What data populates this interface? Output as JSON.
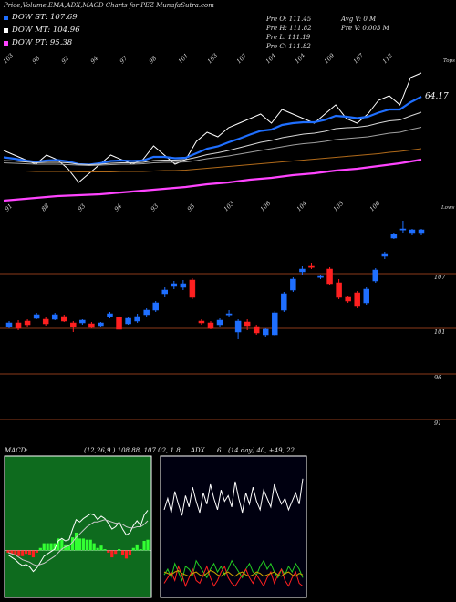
{
  "header": {
    "title": "Price,Volume,EMA,ADX,MACD Charts for PEZ MunafaSutra.com",
    "dow": [
      {
        "label": "DOW ST: 107.69",
        "color": "#1f6fff"
      },
      {
        "label": "DOW MT: 104.96",
        "color": "#ffffff"
      },
      {
        "label": "DOW PT: 95.38",
        "color": "#ff44ff"
      }
    ],
    "ohlc_left": [
      "Pre  O: 111.45",
      "Pre  H: 111.82",
      "Pre  L: 111.19",
      "Pre  C: 111.82"
    ],
    "ohlc_right": [
      "Avg V: 0  M",
      "Pre  V: 0.003 M"
    ]
  },
  "chart_data": [
    {
      "type": "line",
      "name": "ema-panel",
      "right_label": "64.17",
      "corner_label": "Tops",
      "top_labels": [
        "103",
        "98",
        "92",
        "94",
        "97",
        "98",
        "101",
        "103",
        "107",
        "104",
        "104",
        "109",
        "107",
        "112"
      ],
      "bottom_labels": [
        "91",
        "88",
        "93",
        "94",
        "93",
        "95",
        "103",
        "106",
        "104",
        "105",
        "106"
      ],
      "corner_label_bottom": "Lows",
      "x": [
        0,
        1,
        2,
        3,
        4,
        5,
        6,
        7,
        8,
        9,
        10,
        11,
        12,
        13,
        14,
        15,
        16,
        17,
        18,
        19,
        20,
        21,
        22,
        23,
        24,
        25,
        26,
        27,
        28,
        29,
        30,
        31,
        32,
        33,
        34,
        35,
        36,
        37,
        38,
        39
      ],
      "series": [
        {
          "color": "#ffffff",
          "values": [
            102,
            101,
            100,
            99,
            101,
            100,
            98,
            95,
            97,
            99,
            101,
            100,
            99,
            100,
            103,
            101,
            99,
            100,
            104,
            106,
            105,
            107,
            108,
            109,
            110,
            108,
            111,
            110,
            109,
            108,
            110,
            112,
            109,
            108,
            110,
            113,
            114,
            112,
            118,
            119
          ]
        },
        {
          "color": "#1f6fff",
          "values": [
            100.5,
            100.2,
            99.8,
            99.5,
            99.8,
            99.9,
            99.6,
            99.0,
            98.9,
            99.2,
            99.7,
            99.8,
            99.7,
            99.8,
            100.6,
            100.6,
            100.3,
            100.4,
            101.4,
            102.4,
            102.9,
            103.8,
            104.6,
            105.5,
            106.3,
            106.6,
            107.6,
            108.0,
            108.2,
            108.2,
            108.7,
            109.6,
            109.4,
            109.1,
            109.4,
            110.3,
            111.0,
            111.0,
            112.6,
            113.8
          ]
        },
        {
          "color": "#d8d8d8",
          "values": [
            99.8,
            99.7,
            99.5,
            99.3,
            99.4,
            99.4,
            99.3,
            99.0,
            98.9,
            99.0,
            99.2,
            99.3,
            99.3,
            99.4,
            99.8,
            99.9,
            99.9,
            100.0,
            100.5,
            101.1,
            101.5,
            102.0,
            102.6,
            103.2,
            103.8,
            104.2,
            104.8,
            105.2,
            105.6,
            105.8,
            106.2,
            106.8,
            107.0,
            107.1,
            107.4,
            108.0,
            108.5,
            108.7,
            109.6,
            110.4
          ]
        },
        {
          "color": "#a0a0a0",
          "values": [
            99.3,
            99.2,
            99.1,
            99.0,
            99.0,
            99.0,
            98.9,
            98.8,
            98.7,
            98.8,
            98.9,
            99.0,
            99.0,
            99.1,
            99.3,
            99.4,
            99.4,
            99.5,
            99.8,
            100.2,
            100.5,
            100.8,
            101.2,
            101.6,
            102.0,
            102.4,
            102.8,
            103.2,
            103.5,
            103.7,
            104.0,
            104.4,
            104.6,
            104.8,
            105.0,
            105.4,
            105.8,
            106.0,
            106.6,
            107.1
          ]
        },
        {
          "color": "#b06a1a",
          "values": [
            97.5,
            97.5,
            97.5,
            97.4,
            97.4,
            97.4,
            97.4,
            97.3,
            97.3,
            97.3,
            97.3,
            97.4,
            97.4,
            97.4,
            97.5,
            97.6,
            97.6,
            97.7,
            97.9,
            98.1,
            98.3,
            98.5,
            98.7,
            98.9,
            99.1,
            99.3,
            99.5,
            99.7,
            99.9,
            100.1,
            100.3,
            100.5,
            100.7,
            100.9,
            101.1,
            101.3,
            101.6,
            101.8,
            102.1,
            102.4
          ]
        },
        {
          "color": "#ff44ff",
          "values": [
            91.0,
            91.2,
            91.4,
            91.6,
            91.8,
            92.0,
            92.1,
            92.2,
            92.3,
            92.4,
            92.6,
            92.8,
            93.0,
            93.2,
            93.4,
            93.6,
            93.8,
            94.0,
            94.3,
            94.6,
            94.8,
            95.0,
            95.3,
            95.6,
            95.8,
            96.0,
            96.3,
            96.6,
            96.8,
            97.0,
            97.3,
            97.6,
            97.8,
            98.0,
            98.3,
            98.6,
            98.9,
            99.2,
            99.6,
            100.0
          ]
        }
      ],
      "ylim": [
        88,
        121
      ]
    },
    {
      "type": "candlestick",
      "name": "price-panel",
      "price_levels": [
        {
          "value": 107,
          "label": "107"
        },
        {
          "value": 101,
          "label": "101"
        },
        {
          "value": 96,
          "label": "96"
        },
        {
          "value": 91,
          "label": "91"
        }
      ],
      "candles": [
        {
          "o": 101.2,
          "c": 101.6,
          "h": 101.8,
          "l": 101.0
        },
        {
          "o": 101.6,
          "c": 101.0,
          "h": 101.9,
          "l": 100.8
        },
        {
          "o": 101.8,
          "c": 101.4,
          "h": 102.0,
          "l": 101.2
        },
        {
          "o": 102.1,
          "c": 102.5,
          "h": 102.7,
          "l": 102.0
        },
        {
          "o": 102.0,
          "c": 101.5,
          "h": 102.2,
          "l": 101.3
        },
        {
          "o": 102.0,
          "c": 102.5,
          "h": 102.7,
          "l": 101.9
        },
        {
          "o": 102.3,
          "c": 101.8,
          "h": 102.5,
          "l": 101.7
        },
        {
          "o": 101.6,
          "c": 101.2,
          "h": 101.8,
          "l": 100.6
        },
        {
          "o": 101.6,
          "c": 101.9,
          "h": 102.0,
          "l": 101.4
        },
        {
          "o": 101.5,
          "c": 101.1,
          "h": 101.7,
          "l": 101.0
        },
        {
          "o": 101.3,
          "c": 101.6,
          "h": 101.7,
          "l": 101.2
        },
        {
          "o": 102.3,
          "c": 102.6,
          "h": 102.8,
          "l": 102.1
        },
        {
          "o": 102.2,
          "c": 100.9,
          "h": 102.4,
          "l": 100.8
        },
        {
          "o": 101.5,
          "c": 102.1,
          "h": 102.3,
          "l": 101.4
        },
        {
          "o": 101.8,
          "c": 102.3,
          "h": 102.6,
          "l": 101.6
        },
        {
          "o": 102.5,
          "c": 103.0,
          "h": 103.2,
          "l": 102.3
        },
        {
          "o": 103.0,
          "c": 103.8,
          "h": 104.0,
          "l": 102.8
        },
        {
          "o": 104.8,
          "c": 105.2,
          "h": 105.5,
          "l": 104.4
        },
        {
          "o": 105.6,
          "c": 105.9,
          "h": 106.2,
          "l": 105.3
        },
        {
          "o": 105.5,
          "c": 105.9,
          "h": 106.3,
          "l": 105.2
        },
        {
          "o": 106.3,
          "c": 104.4,
          "h": 106.5,
          "l": 104.2
        },
        {
          "o": 101.8,
          "c": 101.6,
          "h": 102.0,
          "l": 101.4
        },
        {
          "o": 101.6,
          "c": 101.0,
          "h": 101.8,
          "l": 100.9
        },
        {
          "o": 101.4,
          "c": 101.9,
          "h": 102.1,
          "l": 101.2
        },
        {
          "o": 102.5,
          "c": 102.6,
          "h": 103.0,
          "l": 102.2
        },
        {
          "o": 100.6,
          "c": 101.8,
          "h": 102.0,
          "l": 99.8
        },
        {
          "o": 101.7,
          "c": 101.3,
          "h": 102.0,
          "l": 100.8
        },
        {
          "o": 101.2,
          "c": 100.5,
          "h": 101.4,
          "l": 100.3
        },
        {
          "o": 100.3,
          "c": 100.9,
          "h": 101.0,
          "l": 100.1
        },
        {
          "o": 100.3,
          "c": 102.7,
          "h": 102.9,
          "l": 100.2
        },
        {
          "o": 103.0,
          "c": 104.8,
          "h": 105.0,
          "l": 102.8
        },
        {
          "o": 105.2,
          "c": 106.4,
          "h": 106.6,
          "l": 105.0
        },
        {
          "o": 107.2,
          "c": 107.5,
          "h": 107.8,
          "l": 106.9
        },
        {
          "o": 107.8,
          "c": 107.7,
          "h": 108.2,
          "l": 107.5
        },
        {
          "o": 106.6,
          "c": 106.7,
          "h": 106.9,
          "l": 106.4
        },
        {
          "o": 107.5,
          "c": 105.9,
          "h": 107.7,
          "l": 105.7
        },
        {
          "o": 106.0,
          "c": 104.4,
          "h": 106.4,
          "l": 104.2
        },
        {
          "o": 104.4,
          "c": 104.0,
          "h": 104.6,
          "l": 103.8
        },
        {
          "o": 104.9,
          "c": 103.4,
          "h": 105.1,
          "l": 103.2
        },
        {
          "o": 103.8,
          "c": 105.3,
          "h": 105.5,
          "l": 103.6
        },
        {
          "o": 106.2,
          "c": 107.4,
          "h": 107.6,
          "l": 106.0
        },
        {
          "o": 108.9,
          "c": 109.2,
          "h": 109.4,
          "l": 108.6
        },
        {
          "o": 110.9,
          "c": 111.3,
          "h": 111.5,
          "l": 110.8
        },
        {
          "o": 111.9,
          "c": 111.9,
          "h": 112.8,
          "l": 111.5
        },
        {
          "o": 111.5,
          "c": 111.8,
          "h": 111.9,
          "l": 111.2
        },
        {
          "o": 111.5,
          "c": 111.8,
          "h": 111.9,
          "l": 111.2
        }
      ],
      "up_color": "#1f6fff",
      "down_color": "#ff2020",
      "ylim": [
        90,
        113.5
      ]
    },
    {
      "type": "line",
      "name": "macd-panel",
      "label": "MACD:",
      "values_text": "(12,26,9 ) 108.88, 107.02, 1.8",
      "series": [
        {
          "color": "#ffffff",
          "values": [
            -0.4,
            -0.6,
            -0.8,
            -1.1,
            -1.3,
            -1.2,
            -1.4,
            -1.8,
            -1.5,
            -1.0,
            -0.5,
            -0.3,
            -0.1,
            0.1,
            0.8,
            1.0,
            0.8,
            0.9,
            1.8,
            2.6,
            2.4,
            2.7,
            2.9,
            3.1,
            3.0,
            2.6,
            2.9,
            2.7,
            2.3,
            1.8,
            2.0,
            2.4,
            1.8,
            1.3,
            1.5,
            2.1,
            2.5,
            2.1,
            3.0,
            3.4
          ]
        },
        {
          "color": "#c8c8c8",
          "values": [
            -0.2,
            -0.3,
            -0.4,
            -0.6,
            -0.8,
            -0.9,
            -1.0,
            -1.2,
            -1.3,
            -1.2,
            -1.1,
            -0.9,
            -0.7,
            -0.5,
            -0.2,
            0.1,
            0.3,
            0.4,
            0.7,
            1.1,
            1.4,
            1.7,
            2.0,
            2.2,
            2.4,
            2.4,
            2.5,
            2.6,
            2.5,
            2.4,
            2.3,
            2.3,
            2.2,
            2.0,
            1.9,
            1.9,
            2.0,
            2.0,
            2.2,
            2.5
          ]
        }
      ],
      "histogram": [
        -0.2,
        -0.3,
        -0.4,
        -0.5,
        -0.5,
        -0.3,
        -0.4,
        -0.6,
        -0.2,
        0.2,
        0.6,
        0.6,
        0.6,
        0.6,
        1.0,
        0.9,
        0.5,
        0.5,
        1.1,
        1.5,
        1.0,
        1.0,
        0.9,
        0.9,
        0.6,
        0.2,
        0.4,
        0.1,
        -0.2,
        -0.6,
        -0.3,
        0.1,
        -0.4,
        -0.7,
        -0.4,
        0.2,
        0.5,
        0.1,
        0.8,
        0.9
      ],
      "ylim": [
        -4,
        8
      ]
    },
    {
      "type": "line",
      "name": "adx-panel",
      "label": "ADX",
      "value": "6",
      "values_text": "(14 day) 40, +49, 22",
      "series": [
        {
          "color": "#ffffff",
          "values": [
            62,
            70,
            60,
            75,
            66,
            58,
            72,
            64,
            78,
            68,
            60,
            74,
            66,
            80,
            70,
            62,
            76,
            68,
            72,
            64,
            82,
            70,
            60,
            74,
            66,
            78,
            68,
            62,
            76,
            70,
            64,
            80,
            72,
            66,
            70,
            62,
            68,
            74,
            66,
            84
          ]
        },
        {
          "color": "#22cc22",
          "values": [
            16,
            20,
            14,
            24,
            18,
            12,
            22,
            20,
            16,
            26,
            22,
            18,
            14,
            20,
            24,
            18,
            22,
            16,
            20,
            26,
            22,
            18,
            14,
            20,
            24,
            18,
            16,
            22,
            26,
            20,
            24,
            18,
            14,
            20,
            16,
            22,
            18,
            24,
            20,
            14
          ]
        },
        {
          "color": "#ff2020",
          "values": [
            10,
            14,
            18,
            12,
            22,
            16,
            8,
            14,
            20,
            12,
            10,
            16,
            22,
            14,
            8,
            12,
            18,
            22,
            14,
            10,
            8,
            12,
            16,
            20,
            14,
            10,
            16,
            12,
            8,
            14,
            18,
            10,
            16,
            20,
            12,
            8,
            14,
            18,
            10,
            8
          ]
        },
        {
          "color": "#c9a000",
          "values": [
            18,
            17,
            16,
            18,
            19,
            17,
            16,
            15,
            17,
            18,
            16,
            15,
            17,
            19,
            18,
            16,
            15,
            17,
            18,
            16,
            15,
            17,
            18,
            16,
            15,
            16,
            18,
            17,
            15,
            16,
            17,
            18,
            16,
            15,
            17,
            18,
            16,
            15,
            17,
            16
          ]
        }
      ],
      "ylim": [
        0,
        100
      ]
    }
  ]
}
